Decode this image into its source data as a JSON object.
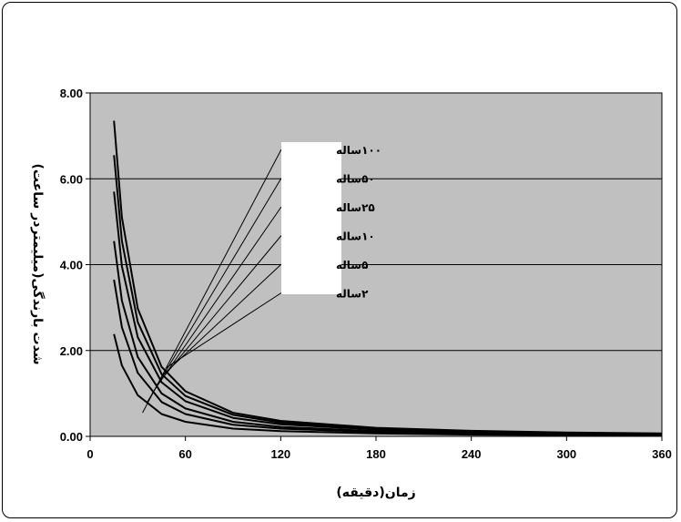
{
  "chart_data": {
    "type": "line",
    "title": "",
    "xlabel": "زمان(دقیقه)",
    "ylabel": "شدت  بارندگی(میلیمتردر ساعت)",
    "xlim": [
      0,
      360
    ],
    "ylim": [
      0,
      8
    ],
    "xticks": [
      0,
      60,
      120,
      180,
      240,
      300,
      360
    ],
    "yticks": [
      0,
      2,
      4,
      6,
      8
    ],
    "xtick_labels": [
      "0",
      "60",
      "120",
      "180",
      "240",
      "300",
      "360"
    ],
    "ytick_labels": [
      "0.00",
      "2.00",
      "4.00",
      "6.00",
      "8.00"
    ],
    "grid": "horizontal",
    "plot_background": "#c0c0c0",
    "line_color": "#000000",
    "x": [
      15,
      20,
      30,
      45,
      60,
      90,
      120,
      180,
      240,
      300,
      360
    ],
    "series": [
      {
        "name": "۱۰۰ساله",
        "values": [
          7.35,
          5.1,
          2.98,
          1.62,
          1.05,
          0.55,
          0.36,
          0.2,
          0.13,
          0.09,
          0.07
        ]
      },
      {
        "name": "۵۰ساله",
        "values": [
          6.55,
          4.55,
          2.66,
          1.45,
          0.94,
          0.5,
          0.32,
          0.18,
          0.12,
          0.08,
          0.06
        ]
      },
      {
        "name": "۲۵ساله",
        "values": [
          5.7,
          3.96,
          2.31,
          1.26,
          0.82,
          0.43,
          0.28,
          0.16,
          0.1,
          0.07,
          0.05
        ]
      },
      {
        "name": "۱۰ساله",
        "values": [
          4.55,
          3.16,
          1.85,
          1.0,
          0.65,
          0.34,
          0.22,
          0.12,
          0.08,
          0.06,
          0.04
        ]
      },
      {
        "name": "۵ساله",
        "values": [
          3.65,
          2.54,
          1.48,
          0.8,
          0.52,
          0.27,
          0.18,
          0.1,
          0.07,
          0.05,
          0.03
        ]
      },
      {
        "name": "۲ساله",
        "values": [
          2.38,
          1.65,
          0.96,
          0.52,
          0.34,
          0.18,
          0.12,
          0.07,
          0.04,
          0.03,
          0.02
        ]
      }
    ],
    "leader_targets": [
      {
        "x": 33,
        "y": 0.55
      },
      {
        "x": 36,
        "y": 0.8
      },
      {
        "x": 39,
        "y": 1.0
      },
      {
        "x": 42,
        "y": 1.2
      },
      {
        "x": 45,
        "y": 1.4
      },
      {
        "x": 48,
        "y": 1.6
      }
    ]
  }
}
